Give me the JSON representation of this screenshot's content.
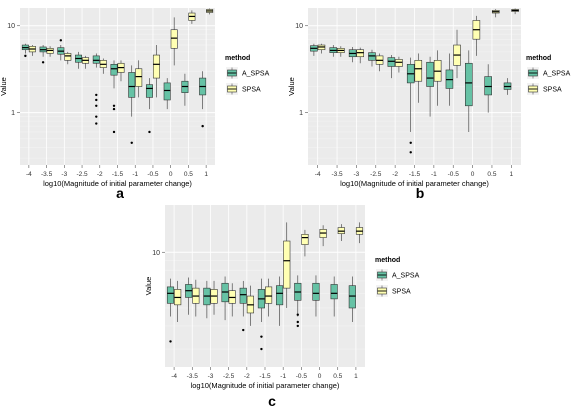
{
  "colors": {
    "A_SPSA": "#66c2a5",
    "SPSA": "#ffffb3",
    "panel_bg": "#ebebeb",
    "grid": "#ffffff",
    "median": "#000000"
  },
  "panels": [
    {
      "caption": "a",
      "chart_data": {
        "type": "boxplot",
        "xlabel": "log10(Magnitude of initial parameter change)",
        "ylabel": "Value",
        "y_scale": "log",
        "ylim": [
          0.25,
          16
        ],
        "y_ticks": [
          1,
          10
        ],
        "categories": [
          "-4",
          "-3.5",
          "-3",
          "-2.5",
          "-2",
          "-1.5",
          "-1",
          "-0.5",
          "0",
          "0.5",
          "1"
        ],
        "legend": {
          "title": "method",
          "entries": [
            "A_SPSA",
            "SPSA"
          ],
          "position": "right"
        },
        "series": [
          {
            "name": "A_SPSA",
            "boxes": [
              {
                "x": "-4",
                "q1": 5.3,
                "med": 5.6,
                "q3": 6.0,
                "lo": 4.8,
                "hi": 6.2,
                "out": [
                  4.5
                ]
              },
              {
                "x": "-3.5",
                "q1": 5.0,
                "med": 5.3,
                "q3": 5.7,
                "lo": 4.4,
                "hi": 6.0,
                "out": [
                  3.8
                ]
              },
              {
                "x": "-3",
                "q1": 4.7,
                "med": 5.1,
                "q3": 5.6,
                "lo": 4.0,
                "hi": 6.0,
                "out": [
                  6.8
                ]
              },
              {
                "x": "-2.5",
                "q1": 3.8,
                "med": 4.2,
                "q3": 4.6,
                "lo": 3.2,
                "hi": 5.0,
                "out": []
              },
              {
                "x": "-2",
                "q1": 3.7,
                "med": 4.0,
                "q3": 4.5,
                "lo": 3.3,
                "hi": 4.8,
                "out": [
                  1.6,
                  1.4,
                  1.2,
                  0.9,
                  0.75
                ]
              },
              {
                "x": "-1.5",
                "q1": 2.7,
                "med": 3.2,
                "q3": 3.6,
                "lo": 1.9,
                "hi": 4.0,
                "out": [
                  1.2,
                  1.1,
                  0.6
                ]
              },
              {
                "x": "-1",
                "q1": 1.5,
                "med": 2.0,
                "q3": 2.9,
                "lo": 0.9,
                "hi": 3.5,
                "out": [
                  0.45
                ]
              },
              {
                "x": "-0.5",
                "q1": 1.5,
                "med": 1.9,
                "q3": 2.1,
                "lo": 1.1,
                "hi": 2.5,
                "out": [
                  0.6
                ]
              },
              {
                "x": "0",
                "q1": 1.4,
                "med": 1.8,
                "q3": 2.2,
                "lo": 1.1,
                "hi": 2.5,
                "out": []
              },
              {
                "x": "0.5",
                "q1": 1.7,
                "med": 2.0,
                "q3": 2.3,
                "lo": 1.2,
                "hi": 2.8,
                "out": []
              },
              {
                "x": "1",
                "q1": 1.6,
                "med": 2.0,
                "q3": 2.5,
                "lo": 1.1,
                "hi": 3.0,
                "out": [
                  0.7
                ]
              }
            ]
          },
          {
            "name": "SPSA",
            "boxes": [
              {
                "x": "-4",
                "q1": 5.0,
                "med": 5.4,
                "q3": 5.8,
                "lo": 4.5,
                "hi": 6.0,
                "out": []
              },
              {
                "x": "-3.5",
                "q1": 4.8,
                "med": 5.2,
                "q3": 5.5,
                "lo": 4.4,
                "hi": 5.8,
                "out": []
              },
              {
                "x": "-3",
                "q1": 4.0,
                "med": 4.5,
                "q3": 4.8,
                "lo": 3.6,
                "hi": 5.0,
                "out": []
              },
              {
                "x": "-2.5",
                "q1": 3.7,
                "med": 4.0,
                "q3": 4.3,
                "lo": 3.2,
                "hi": 4.5,
                "out": []
              },
              {
                "x": "-2",
                "q1": 3.3,
                "med": 3.6,
                "q3": 4.0,
                "lo": 2.8,
                "hi": 4.2,
                "out": []
              },
              {
                "x": "-1.5",
                "q1": 2.9,
                "med": 3.3,
                "q3": 3.7,
                "lo": 2.3,
                "hi": 4.0,
                "out": []
              },
              {
                "x": "-1",
                "q1": 2.0,
                "med": 2.6,
                "q3": 3.2,
                "lo": 1.5,
                "hi": 4.0,
                "out": []
              },
              {
                "x": "-0.5",
                "q1": 2.5,
                "med": 3.6,
                "q3": 4.6,
                "lo": 1.5,
                "hi": 6.0,
                "out": []
              },
              {
                "x": "0",
                "q1": 5.5,
                "med": 7.2,
                "q3": 9.0,
                "lo": 3.5,
                "hi": 12.5,
                "out": []
              },
              {
                "x": "0.5",
                "q1": 11.5,
                "med": 12.8,
                "q3": 14.0,
                "lo": 10.5,
                "hi": 15.0,
                "out": []
              },
              {
                "x": "1",
                "q1": 14.2,
                "med": 14.8,
                "q3": 15.4,
                "lo": 13.5,
                "hi": 15.8,
                "out": []
              }
            ]
          }
        ]
      }
    },
    {
      "caption": "b",
      "chart_data": {
        "type": "boxplot",
        "xlabel": "log10(Magnitude of initial parameter change)",
        "ylabel": "Value",
        "y_scale": "log",
        "ylim": [
          0.25,
          16
        ],
        "y_ticks": [
          1,
          10
        ],
        "categories": [
          "-4",
          "-3.5",
          "-3",
          "-2.5",
          "-2",
          "-1.5",
          "-1",
          "-0.5",
          "0",
          "0.5",
          "1"
        ],
        "legend": {
          "title": "method",
          "entries": [
            "A_SPSA",
            "SPSA"
          ],
          "position": "right"
        },
        "series": [
          {
            "name": "A_SPSA",
            "boxes": [
              {
                "x": "-4",
                "q1": 5.1,
                "med": 5.5,
                "q3": 5.9,
                "lo": 4.5,
                "hi": 6.2,
                "out": []
              },
              {
                "x": "-3.5",
                "q1": 4.9,
                "med": 5.2,
                "q3": 5.6,
                "lo": 4.4,
                "hi": 6.0,
                "out": []
              },
              {
                "x": "-3",
                "q1": 4.4,
                "med": 4.8,
                "q3": 5.3,
                "lo": 3.8,
                "hi": 5.7,
                "out": []
              },
              {
                "x": "-2.5",
                "q1": 4.0,
                "med": 4.5,
                "q3": 4.9,
                "lo": 3.4,
                "hi": 5.3,
                "out": []
              },
              {
                "x": "-2",
                "q1": 3.4,
                "med": 3.9,
                "q3": 4.3,
                "lo": 2.5,
                "hi": 4.6,
                "out": []
              },
              {
                "x": "-1.5",
                "q1": 2.2,
                "med": 2.8,
                "q3": 3.6,
                "lo": 0.6,
                "hi": 4.3,
                "out": [
                  0.45,
                  0.35
                ]
              },
              {
                "x": "-1",
                "q1": 2.0,
                "med": 2.5,
                "q3": 3.8,
                "lo": 0.9,
                "hi": 4.4,
                "out": []
              },
              {
                "x": "-0.5",
                "q1": 1.9,
                "med": 2.4,
                "q3": 3.1,
                "lo": 1.2,
                "hi": 4.8,
                "out": []
              },
              {
                "x": "0",
                "q1": 1.2,
                "med": 2.2,
                "q3": 3.7,
                "lo": 0.6,
                "hi": 5.2,
                "out": []
              },
              {
                "x": "0.5",
                "q1": 1.6,
                "med": 2.0,
                "q3": 2.6,
                "lo": 1.0,
                "hi": 3.6,
                "out": []
              },
              {
                "x": "1",
                "q1": 1.85,
                "med": 2.0,
                "q3": 2.2,
                "lo": 1.6,
                "hi": 2.5,
                "out": []
              }
            ]
          },
          {
            "name": "SPSA",
            "boxes": [
              {
                "x": "-4",
                "q1": 5.3,
                "med": 5.7,
                "q3": 6.0,
                "lo": 4.8,
                "hi": 6.2,
                "out": []
              },
              {
                "x": "-3.5",
                "q1": 4.9,
                "med": 5.2,
                "q3": 5.5,
                "lo": 4.4,
                "hi": 5.8,
                "out": []
              },
              {
                "x": "-3",
                "q1": 4.4,
                "med": 4.9,
                "q3": 5.3,
                "lo": 3.7,
                "hi": 5.6,
                "out": []
              },
              {
                "x": "-2.5",
                "q1": 3.6,
                "med": 4.0,
                "q3": 4.5,
                "lo": 3.0,
                "hi": 4.8,
                "out": []
              },
              {
                "x": "-2",
                "q1": 3.4,
                "med": 3.8,
                "q3": 4.1,
                "lo": 2.9,
                "hi": 4.4,
                "out": []
              },
              {
                "x": "-1.5",
                "q1": 2.3,
                "med": 3.2,
                "q3": 4.0,
                "lo": 1.3,
                "hi": 4.8,
                "out": []
              },
              {
                "x": "-1",
                "q1": 2.3,
                "med": 3.0,
                "q3": 4.0,
                "lo": 1.2,
                "hi": 5.2,
                "out": []
              },
              {
                "x": "-0.5",
                "q1": 3.5,
                "med": 4.6,
                "q3": 6.0,
                "lo": 2.5,
                "hi": 9.0,
                "out": []
              },
              {
                "x": "0",
                "q1": 7.0,
                "med": 9.0,
                "q3": 11.5,
                "lo": 4.5,
                "hi": 13.0,
                "out": []
              },
              {
                "x": "0.5",
                "q1": 14.0,
                "med": 14.5,
                "q3": 15.0,
                "lo": 12.5,
                "hi": 15.5,
                "out": []
              },
              {
                "x": "1",
                "q1": 14.6,
                "med": 15.0,
                "q3": 15.4,
                "lo": 13.6,
                "hi": 15.8,
                "out": []
              }
            ]
          }
        ]
      }
    },
    {
      "caption": "c",
      "chart_data": {
        "type": "boxplot",
        "xlabel": "log10(Magnitude of initial parameter change)",
        "ylabel": "Value",
        "y_scale": "log",
        "ylim": [
          2.4,
          18
        ],
        "y_ticks": [
          10
        ],
        "categories": [
          "-4",
          "-3.5",
          "-3",
          "-2.5",
          "-2",
          "-1.5",
          "-1",
          "-0.5",
          "0",
          "0.5",
          "1"
        ],
        "legend": {
          "title": "method",
          "entries": [
            "A_SPSA",
            "SPSA"
          ],
          "position": "right"
        },
        "series": [
          {
            "name": "A_SPSA",
            "boxes": [
              {
                "x": "-4",
                "q1": 5.3,
                "med": 6.0,
                "q3": 6.5,
                "lo": 4.5,
                "hi": 7.2,
                "out": [
                  3.3
                ]
              },
              {
                "x": "-3.5",
                "q1": 5.7,
                "med": 6.2,
                "q3": 6.7,
                "lo": 4.6,
                "hi": 7.3,
                "out": []
              },
              {
                "x": "-3",
                "q1": 5.2,
                "med": 5.8,
                "q3": 6.4,
                "lo": 4.4,
                "hi": 7.0,
                "out": []
              },
              {
                "x": "-2.5",
                "q1": 5.4,
                "med": 6.1,
                "q3": 6.8,
                "lo": 4.3,
                "hi": 7.4,
                "out": []
              },
              {
                "x": "-2",
                "q1": 5.3,
                "med": 5.9,
                "q3": 6.4,
                "lo": 4.5,
                "hi": 7.0,
                "out": [
                  3.8
                ]
              },
              {
                "x": "-1.5",
                "q1": 5.0,
                "med": 5.6,
                "q3": 6.3,
                "lo": 4.2,
                "hi": 7.2,
                "out": [
                  3.5,
                  3.0
                ]
              },
              {
                "x": "-1",
                "q1": 5.2,
                "med": 6.0,
                "q3": 6.6,
                "lo": 4.0,
                "hi": 7.4,
                "out": []
              },
              {
                "x": "-0.5",
                "q1": 5.5,
                "med": 6.1,
                "q3": 6.8,
                "lo": 4.5,
                "hi": 7.5,
                "out": [
                  4.6,
                  4.2,
                  4.0
                ]
              },
              {
                "x": "0",
                "q1": 5.5,
                "med": 6.0,
                "q3": 6.8,
                "lo": 4.5,
                "hi": 7.5,
                "out": []
              },
              {
                "x": "0.5",
                "q1": 5.6,
                "med": 6.0,
                "q3": 6.7,
                "lo": 4.5,
                "hi": 7.4,
                "out": []
              },
              {
                "x": "1",
                "q1": 5.0,
                "med": 5.8,
                "q3": 6.6,
                "lo": 4.2,
                "hi": 7.4,
                "out": []
              }
            ]
          },
          {
            "name": "SPSA",
            "boxes": [
              {
                "x": "-4",
                "q1": 5.2,
                "med": 5.7,
                "q3": 6.3,
                "lo": 4.2,
                "hi": 7.0,
                "out": []
              },
              {
                "x": "-3.5",
                "q1": 5.3,
                "med": 5.8,
                "q3": 6.4,
                "lo": 4.5,
                "hi": 7.1,
                "out": []
              },
              {
                "x": "-3",
                "q1": 5.3,
                "med": 5.8,
                "q3": 6.3,
                "lo": 4.6,
                "hi": 7.0,
                "out": []
              },
              {
                "x": "-2.5",
                "q1": 5.3,
                "med": 5.7,
                "q3": 6.2,
                "lo": 4.5,
                "hi": 6.8,
                "out": []
              },
              {
                "x": "-2",
                "q1": 4.7,
                "med": 5.2,
                "q3": 5.8,
                "lo": 4.0,
                "hi": 6.6,
                "out": []
              },
              {
                "x": "-1.5",
                "q1": 5.3,
                "med": 5.8,
                "q3": 6.5,
                "lo": 4.5,
                "hi": 7.2,
                "out": []
              },
              {
                "x": "-1",
                "q1": 6.4,
                "med": 9.0,
                "q3": 11.5,
                "lo": 5.0,
                "hi": 14.5,
                "out": []
              },
              {
                "x": "-0.5",
                "q1": 11.0,
                "med": 12.0,
                "q3": 12.5,
                "lo": 9.5,
                "hi": 13.2,
                "out": []
              },
              {
                "x": "0",
                "q1": 12.0,
                "med": 12.7,
                "q3": 13.3,
                "lo": 10.8,
                "hi": 14.0,
                "out": []
              },
              {
                "x": "0.5",
                "q1": 12.6,
                "med": 13.0,
                "q3": 13.6,
                "lo": 11.5,
                "hi": 14.2,
                "out": []
              },
              {
                "x": "1",
                "q1": 12.5,
                "med": 13.0,
                "q3": 13.6,
                "lo": 11.2,
                "hi": 14.5,
                "out": []
              }
            ]
          }
        ]
      }
    }
  ]
}
